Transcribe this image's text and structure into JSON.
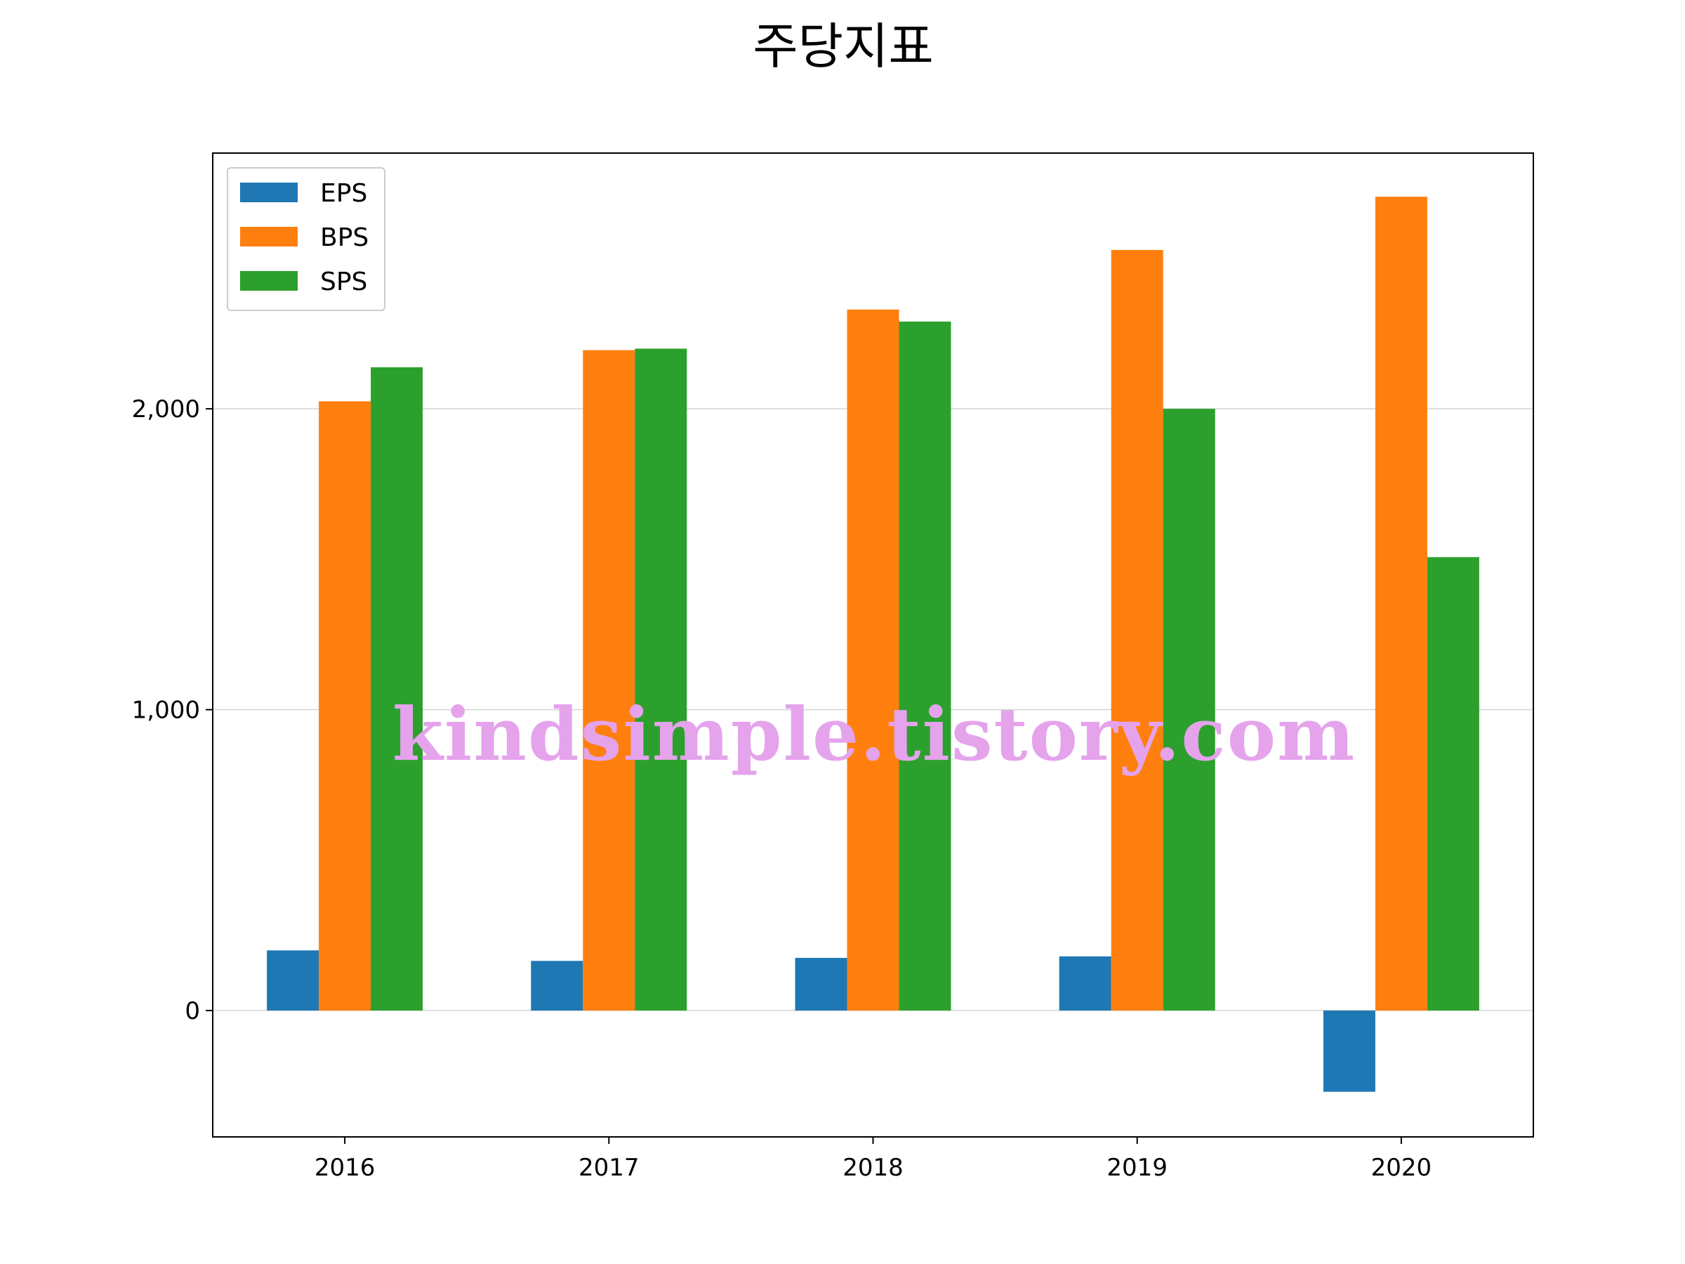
{
  "chart_data": {
    "type": "bar",
    "title": "주당지표",
    "xlabel": "",
    "ylabel": "",
    "categories": [
      "2016",
      "2017",
      "2018",
      "2019",
      "2020"
    ],
    "series": [
      {
        "name": "EPS",
        "color": "#1f77b4",
        "values": [
          200,
          165,
          175,
          180,
          -270
        ]
      },
      {
        "name": "BPS",
        "color": "#ff7f0e",
        "values": [
          2025,
          2195,
          2330,
          2528,
          2705
        ]
      },
      {
        "name": "SPS",
        "color": "#2ca02c",
        "values": [
          2138,
          2200,
          2290,
          2000,
          1507
        ]
      }
    ],
    "ylim": [
      -420,
      2850
    ],
    "y_ticks": [
      0,
      1000,
      2000
    ],
    "y_tick_labels": [
      "0",
      "1,000",
      "2,000"
    ],
    "grid": "y",
    "legend_position": "upper-left"
  },
  "watermark": {
    "text": "kindsimple.tistory.com"
  }
}
